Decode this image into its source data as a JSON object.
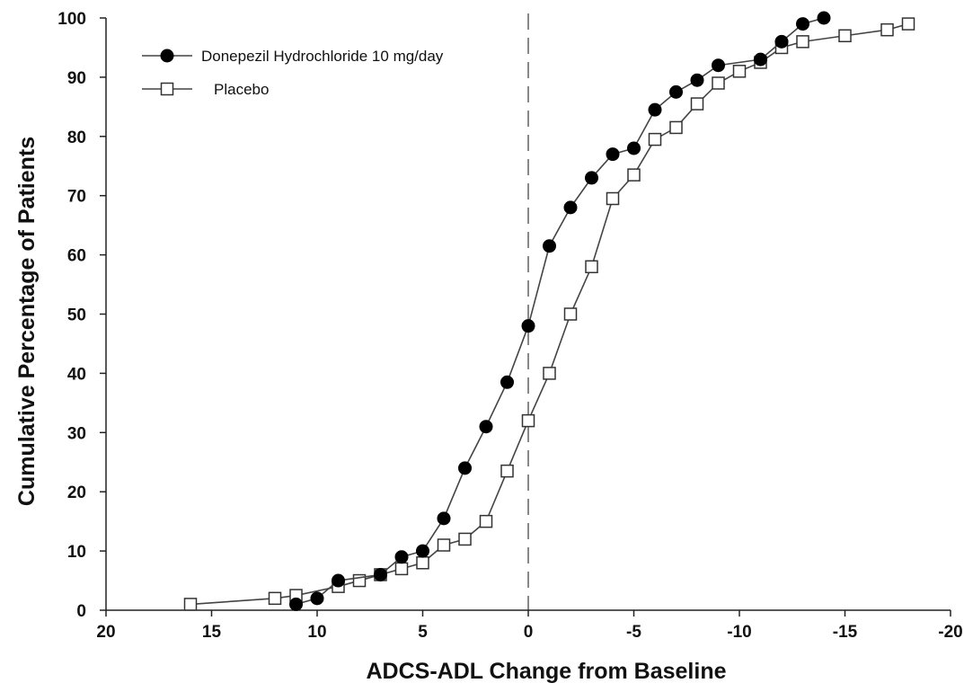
{
  "chart_data": {
    "type": "line",
    "xlabel": "ADCS-ADL Change from Baseline",
    "ylabel": "Cumulative Percentage of Patients",
    "xlim": [
      20,
      -20
    ],
    "ylim": [
      0,
      100
    ],
    "x_reversed": true,
    "x_ticks": [
      20,
      15,
      10,
      5,
      0,
      -5,
      -10,
      -15,
      -20
    ],
    "y_ticks": [
      0,
      10,
      20,
      30,
      40,
      50,
      60,
      70,
      80,
      90,
      100
    ],
    "x_tick_labels": [
      "20",
      "15",
      "10",
      "5",
      "0",
      "-5",
      "-10",
      "-15",
      "-20"
    ],
    "y_tick_labels": [
      "0",
      "10",
      "20",
      "30",
      "40",
      "50",
      "60",
      "70",
      "80",
      "90",
      "100"
    ],
    "reference_line": {
      "x": 0,
      "style": "dashed"
    },
    "grid": false,
    "legend_position": "top-left",
    "series": [
      {
        "name": "Donepezil Hydrochloride 10 mg/day",
        "marker": "filled-circle",
        "color": "#000000",
        "x": [
          11,
          10,
          9,
          7,
          6,
          5,
          4,
          3,
          2,
          1,
          0,
          -1,
          -2,
          -3,
          -4,
          -5,
          -6,
          -7,
          -8,
          -9,
          -11,
          -12,
          -13,
          -14
        ],
        "y": [
          1,
          2,
          5,
          6,
          9,
          10,
          15.5,
          24,
          31,
          38.5,
          48,
          61.5,
          68,
          73,
          77,
          78,
          84.5,
          87.5,
          89.5,
          92,
          93,
          96,
          99,
          100
        ]
      },
      {
        "name": "Placebo",
        "marker": "open-square",
        "color": "#000000",
        "x": [
          16,
          12,
          11,
          9,
          8,
          7,
          6,
          5,
          4,
          3,
          2,
          1,
          0,
          -1,
          -2,
          -3,
          -4,
          -5,
          -6,
          -7,
          -8,
          -9,
          -10,
          -11,
          -12,
          -13,
          -15,
          -17,
          -18
        ],
        "y": [
          1,
          2,
          2.5,
          4,
          5,
          6,
          7,
          8,
          11,
          12,
          15,
          23.5,
          32,
          40,
          50,
          58,
          69.5,
          73.5,
          79.5,
          81.5,
          85.5,
          89,
          91,
          92.5,
          95,
          96,
          97,
          98,
          99
        ]
      }
    ]
  }
}
